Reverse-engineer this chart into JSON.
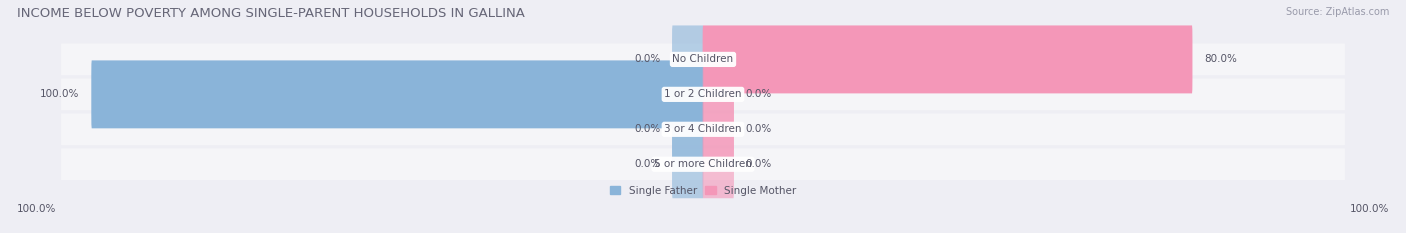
{
  "title": "INCOME BELOW POVERTY AMONG SINGLE-PARENT HOUSEHOLDS IN GALLINA",
  "source": "Source: ZipAtlas.com",
  "categories": [
    "No Children",
    "1 or 2 Children",
    "3 or 4 Children",
    "5 or more Children"
  ],
  "single_father": [
    0.0,
    100.0,
    0.0,
    0.0
  ],
  "single_mother": [
    80.0,
    0.0,
    0.0,
    0.0
  ],
  "father_color": "#8ab4d9",
  "mother_color": "#f497b8",
  "bg_color": "#eeeef4",
  "row_bg_color": "#e4e4ec",
  "row_bg_light": "#f5f5f8",
  "title_color": "#666677",
  "label_color": "#555566",
  "source_color": "#999aaa",
  "max_value": 100.0,
  "title_fontsize": 9.5,
  "label_fontsize": 7.5,
  "source_fontsize": 7.0
}
